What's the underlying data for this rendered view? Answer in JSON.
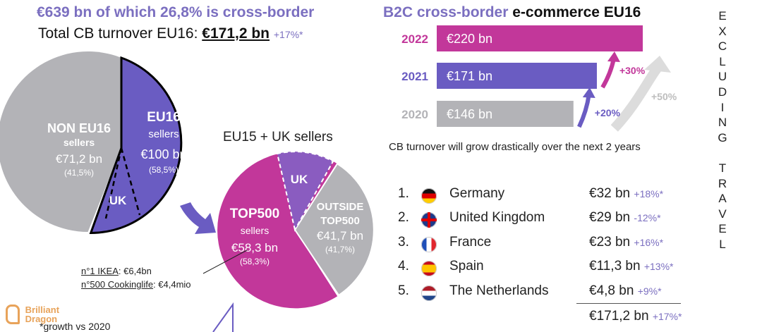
{
  "headline": {
    "left_title": "€639 bn of which 26,8% is cross-border",
    "left_sub_prefix": "Total CB turnover EU16: ",
    "left_sub_value": "€171,2 bn",
    "left_sub_growth": "+17%*",
    "right_title_part1": "B2C cross-border",
    "right_title_part2": " e-commerce EU16"
  },
  "vertical_text": [
    "E",
    "X",
    "C",
    "L",
    "U",
    "D",
    "I",
    "N",
    "G",
    "",
    "T",
    "R",
    "A",
    "V",
    "E",
    "L"
  ],
  "pie_main": {
    "segments": [
      {
        "name": "NON EU16",
        "sub": "sellers",
        "value": "€71,2 bn",
        "share": "(41,5%)",
        "color": "#b3b3b7"
      },
      {
        "name": "EU16",
        "sub": "sellers",
        "value": "€100 bn",
        "share": "(58,5%)",
        "color": "#6a5cc2"
      }
    ],
    "uk_label": "UK"
  },
  "pie_eu15": {
    "title": "EU15 + UK sellers",
    "segments": [
      {
        "name": "TOP500",
        "sub": "sellers",
        "value": "€58,3 bn",
        "share": "(58,3%)",
        "color": "#c2379a"
      },
      {
        "name": "OUTSIDE",
        "name2": "TOP500",
        "value": "€41,7 bn",
        "share": "(41,7%)",
        "color": "#b3b3b7"
      }
    ],
    "uk_label": "UK"
  },
  "notes": {
    "ikea_label": "n°1 IKEA",
    "ikea_value": ": €6,4bn",
    "cookinglife_label": "n°500 Cookinglife",
    "cookinglife_value": ": €4,4mio",
    "footnote": "*growth vs 2020",
    "logo_line1": "Brilliant",
    "logo_line2": "Dragon"
  },
  "chart_data": {
    "type": "bar",
    "title": "B2C cross-border e-commerce EU16",
    "orientation": "horizontal",
    "unit": "€ bn",
    "categories": [
      "2022",
      "2021",
      "2020"
    ],
    "values": [
      220,
      171,
      146
    ],
    "value_labels": [
      "€220 bn",
      "€171 bn",
      "€146 bn"
    ],
    "colors": [
      "#c2379a",
      "#6a5cc2",
      "#b3b3b7"
    ],
    "growth": [
      {
        "from": "2020",
        "to": "2021",
        "label": "+20%"
      },
      {
        "from": "2021",
        "to": "2022",
        "label": "+30%"
      },
      {
        "from": "2020",
        "to": "2022",
        "label": "+50%"
      }
    ],
    "caption": "CB turnover will grow drastically over the next 2 years"
  },
  "ranking": [
    {
      "rank": "1.",
      "flag": "germany-flag-icon",
      "country": "Germany",
      "value": "€32 bn",
      "growth": "+18%*"
    },
    {
      "rank": "2.",
      "flag": "uk-flag-icon",
      "country": "United Kingdom",
      "value": "€29 bn",
      "growth": "-12%*"
    },
    {
      "rank": "3.",
      "flag": "france-flag-icon",
      "country": "France",
      "value": "€23 bn",
      "growth": "+16%*"
    },
    {
      "rank": "4.",
      "flag": "spain-flag-icon",
      "country": "Spain",
      "value": "€11,3 bn",
      "growth": "+13%*"
    },
    {
      "rank": "5.",
      "flag": "netherlands-flag-icon",
      "country": "The Netherlands",
      "value": "€4,8 bn",
      "growth": "+9%*"
    }
  ],
  "ranking_total": {
    "value": "€171,2 bn",
    "growth": "+17%*"
  }
}
